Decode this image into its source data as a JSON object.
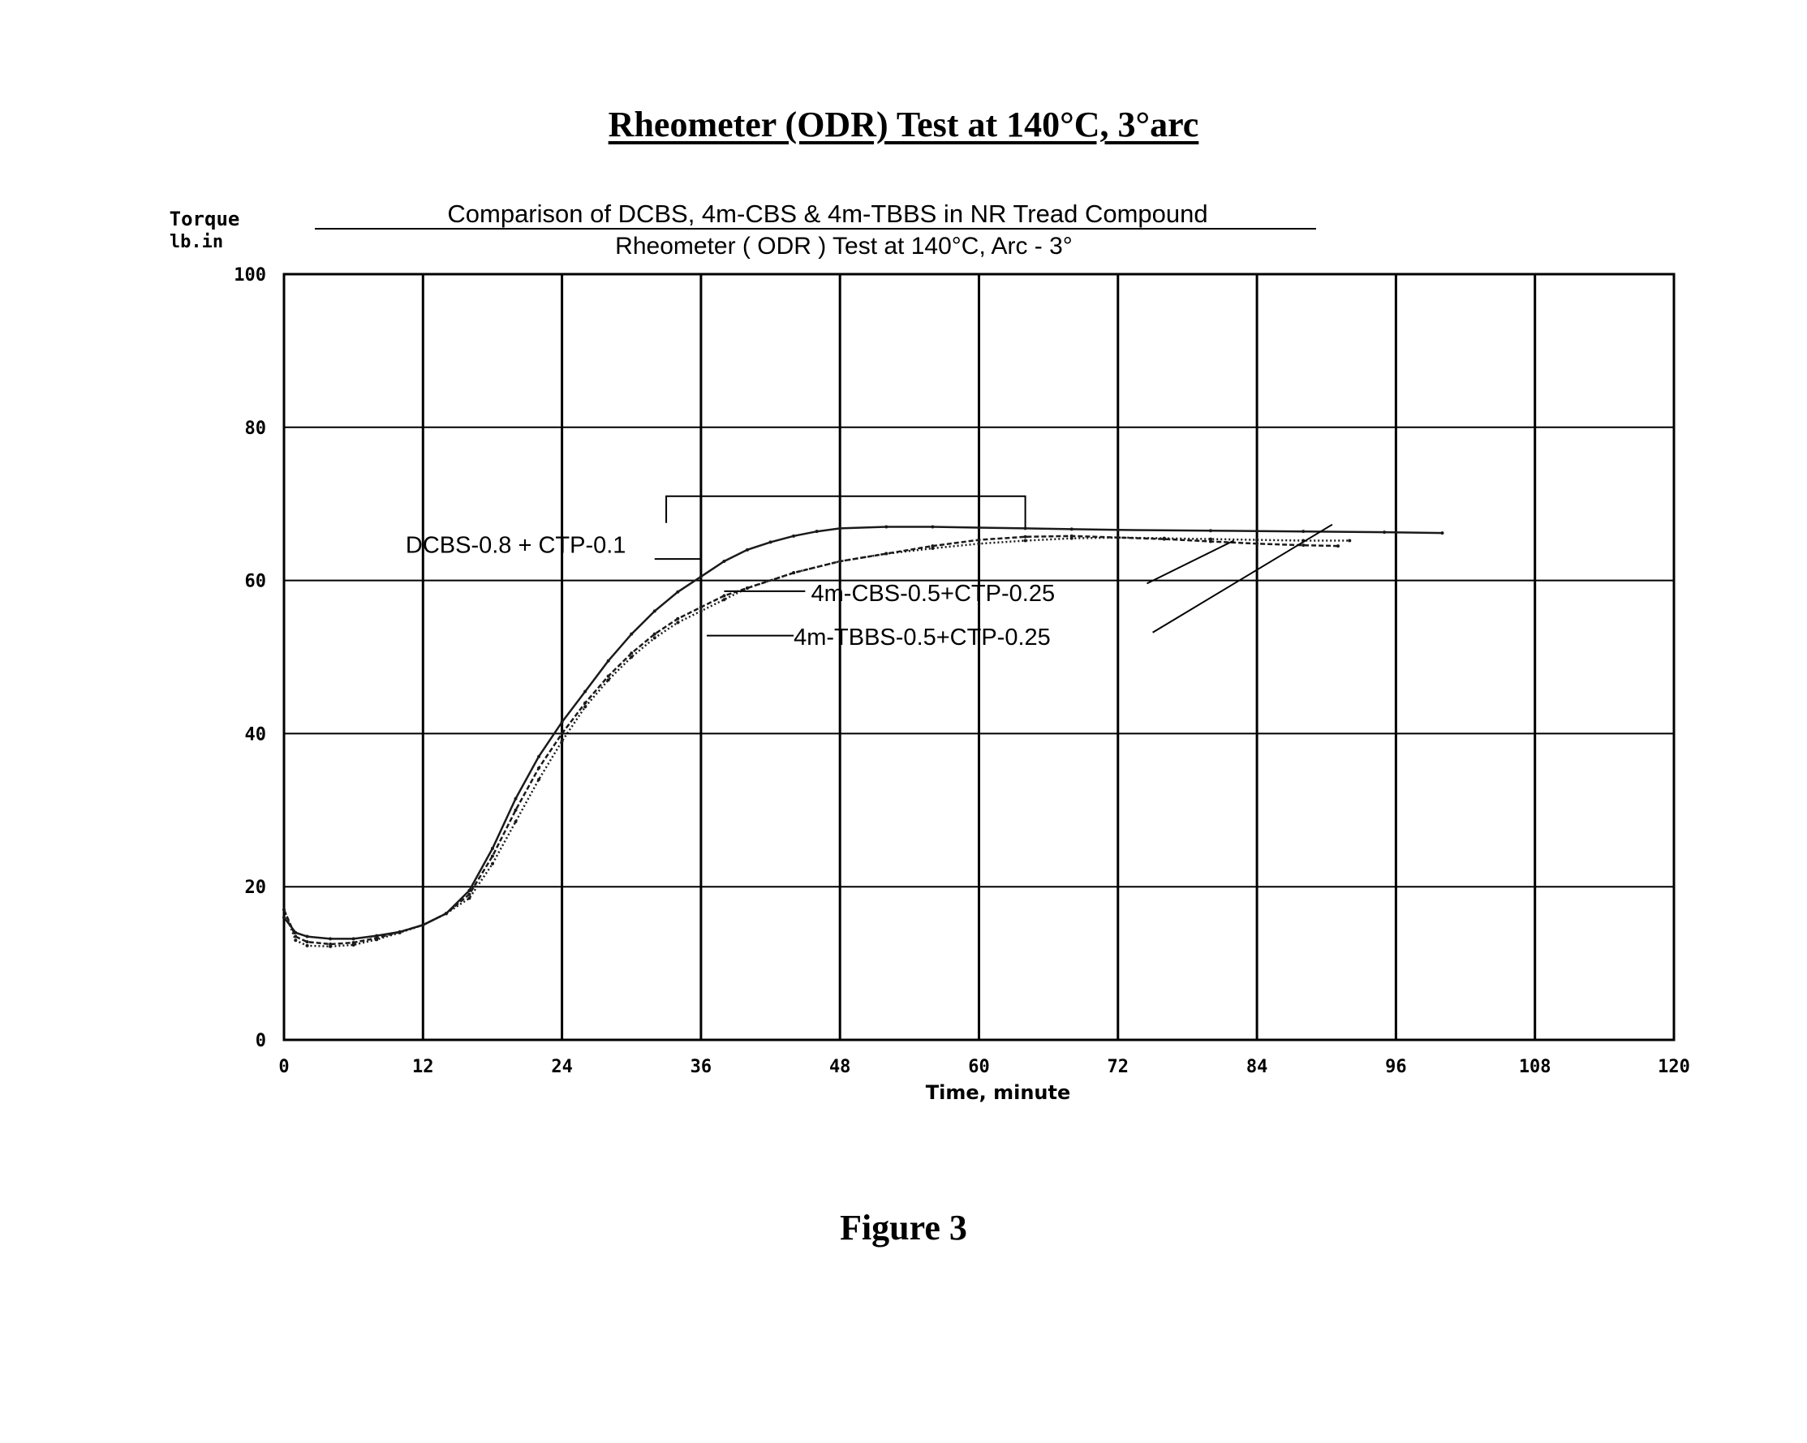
{
  "page_title": "Rheometer (ODR) Test at 140°C, 3°arc",
  "figure_caption": "Figure 3",
  "chart_data": {
    "type": "line",
    "title": "Comparison of DCBS, 4m-CBS & 4m-TBBS in NR Tread Compound",
    "subtitle": "Rheometer ( ODR ) Test at 140°C, Arc - 3°",
    "ylabel_line1": "Torque",
    "ylabel_line2": "lb.in",
    "xlabel": "Time, minute",
    "xlim": [
      0,
      120
    ],
    "ylim": [
      0,
      100
    ],
    "x_ticks": [
      0,
      12,
      24,
      36,
      48,
      60,
      72,
      84,
      96,
      108,
      120
    ],
    "y_ticks": [
      0,
      20,
      40,
      60,
      80,
      100
    ],
    "grid": true,
    "series": [
      {
        "name": "DCBS-0.8 + CTP-0.1",
        "x": [
          0,
          1,
          2,
          4,
          6,
          8,
          10,
          12,
          14,
          16,
          18,
          20,
          22,
          24,
          26,
          28,
          30,
          32,
          34,
          36,
          38,
          40,
          42,
          44,
          46,
          48,
          52,
          56,
          60,
          64,
          68,
          72,
          80,
          88,
          95,
          100
        ],
        "y": [
          16,
          14,
          13.5,
          13.2,
          13.2,
          13.6,
          14.1,
          15,
          16.5,
          19.5,
          25,
          31.5,
          37,
          41.5,
          45.5,
          49.5,
          53,
          56,
          58.5,
          60.5,
          62.5,
          64,
          65,
          65.8,
          66.4,
          66.8,
          67,
          67,
          66.9,
          66.8,
          66.7,
          66.6,
          66.5,
          66.4,
          66.3,
          66.2
        ]
      },
      {
        "name": "4m-CBS-0.5+CTP-0.25",
        "x": [
          0,
          1,
          2,
          4,
          6,
          8,
          10,
          12,
          14,
          16,
          18,
          20,
          22,
          24,
          26,
          28,
          30,
          32,
          34,
          36,
          38,
          40,
          44,
          48,
          52,
          56,
          60,
          64,
          68,
          72,
          76,
          80,
          84,
          88,
          91
        ],
        "y": [
          17,
          13.5,
          12.8,
          12.5,
          12.7,
          13.3,
          14.1,
          15,
          16.5,
          19,
          24,
          30,
          35.5,
          40,
          44,
          47.5,
          50.5,
          53,
          55,
          56.5,
          58,
          59,
          61,
          62.5,
          63.5,
          64.5,
          65.3,
          65.7,
          65.8,
          65.6,
          65.4,
          65.1,
          64.8,
          64.6,
          64.5
        ]
      },
      {
        "name": "4m-TBBS-0.5+CTP-0.25",
        "x": [
          0,
          1,
          2,
          4,
          6,
          8,
          10,
          12,
          14,
          16,
          18,
          20,
          22,
          24,
          26,
          28,
          30,
          32,
          34,
          36,
          38,
          40,
          44,
          48,
          52,
          56,
          60,
          64,
          68,
          72,
          76,
          80,
          84,
          88,
          92
        ],
        "y": [
          17,
          13,
          12.3,
          12.2,
          12.4,
          13.1,
          14,
          15,
          16.5,
          18.5,
          23,
          28.5,
          34,
          39,
          43.5,
          47,
          50,
          52.5,
          54.5,
          56,
          57.5,
          59,
          61,
          62.5,
          63.5,
          64.2,
          64.8,
          65.2,
          65.5,
          65.6,
          65.5,
          65.4,
          65.3,
          65.2,
          65.2
        ]
      }
    ],
    "annotations": [
      {
        "text": "DCBS-0.8 + CTP-0.1",
        "series": "DCBS-0.8 + CTP-0.1"
      },
      {
        "text": "4m-CBS-0.5+CTP-0.25",
        "series": "4m-CBS-0.5+CTP-0.25"
      },
      {
        "text": "4m-TBBS-0.5+CTP-0.25",
        "series": "4m-TBBS-0.5+CTP-0.25"
      }
    ],
    "colors": {
      "line": "#1a1a1a",
      "grid": "#000000",
      "text": "#000000"
    }
  }
}
